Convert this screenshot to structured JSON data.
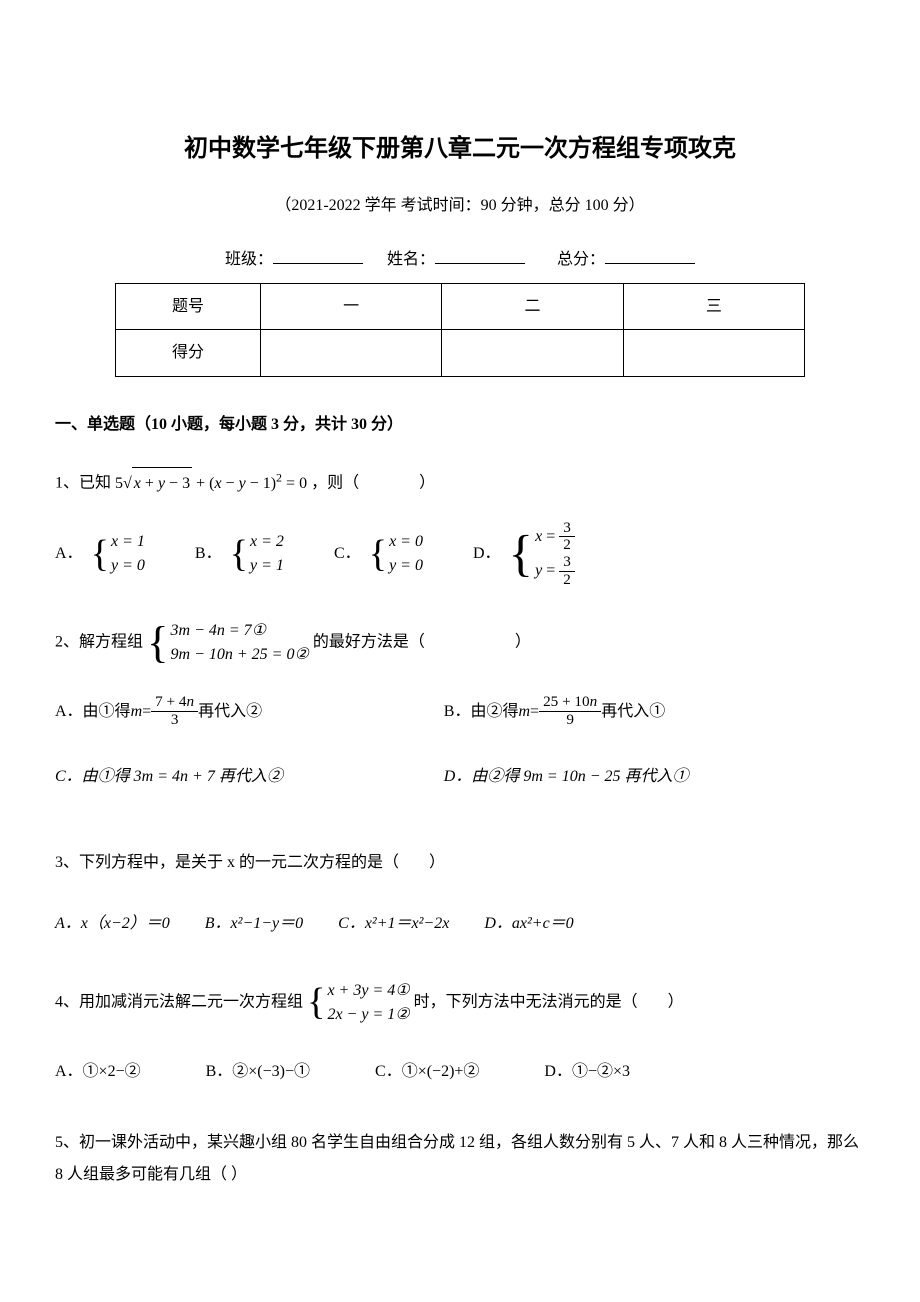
{
  "header": {
    "title": "初中数学七年级下册第八章二元一次方程组专项攻克",
    "subtitle": "（2021-2022 学年 考试时间：90 分钟，总分 100 分）",
    "class_label": "班级：",
    "name_label": "姓名：",
    "score_label": "总分："
  },
  "score_table": {
    "row1": [
      "题号",
      "一",
      "二",
      "三"
    ],
    "row2": [
      "得分",
      "",
      "",
      ""
    ]
  },
  "section1": {
    "title": "一、单选题（10 小题，每小题 3 分，共计 30 分）"
  },
  "q1": {
    "prefix": "1、已知",
    "suffix": "，则（",
    "close": "）",
    "optA": "A．",
    "optB": "B．",
    "optC": "C．",
    "optD": "D．",
    "a_eq1": "x = 1",
    "a_eq2": "y = 0",
    "b_eq1": "x = 2",
    "b_eq2": "y = 1",
    "c_eq1": "x = 0",
    "c_eq2": "y = 0"
  },
  "q2": {
    "prefix": "2、解方程组",
    "suffix": "的最好方法是（",
    "close": "）",
    "eq1": "3m − 4n = 7①",
    "eq2": "9m − 10n + 25 = 0②",
    "optA": "A．由①得",
    "optA2": "再代入②",
    "optB": "B．由②得",
    "optB2": "再代入①",
    "optC": "C．由①得 3m = 4n + 7 再代入②",
    "optD": "D．由②得 9m = 10n − 25 再代入①"
  },
  "q3": {
    "text": "3、下列方程中，是关于 x 的一元二次方程的是（",
    "close": "）",
    "optA": "A．x（x−2）＝0",
    "optB": "B．x²−1−y＝0",
    "optC": "C．x²+1＝x²−2x",
    "optD": "D．ax²+c＝0"
  },
  "q4": {
    "prefix": "4、用加减消元法解二元一次方程组",
    "suffix": "时，下列方法中无法消元的是（",
    "close": "）",
    "eq1": "x + 3y = 4①",
    "eq2": "2x − y = 1②",
    "optA": "A．①×2−②",
    "optB": "B．②×(−3)−①",
    "optC": "C．①×(−2)+②",
    "optD": "D．①−②×3"
  },
  "q5": {
    "text": "5、初一课外活动中，某兴趣小组 80 名学生自由组合分成 12 组，各组人数分别有 5 人、7 人和 8 人三种情况，那么 8 人组最多可能有几组（     ）"
  },
  "styling": {
    "body_width": 920,
    "body_bg": "#ffffff",
    "text_color": "#000000",
    "title_fontsize": 24,
    "body_fontsize": 16,
    "font_family": "SimSun"
  }
}
